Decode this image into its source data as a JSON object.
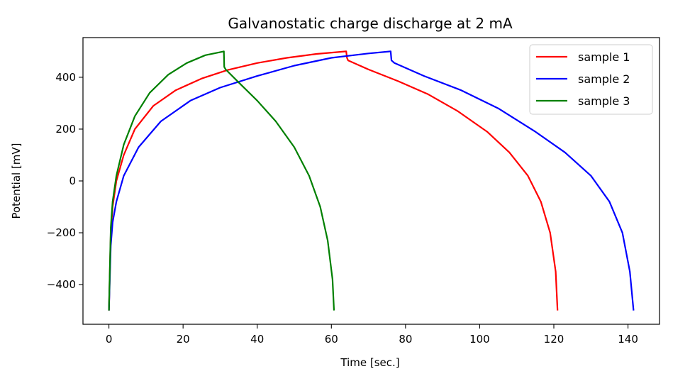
{
  "chart_data": {
    "type": "line",
    "title": "Galvanostatic charge discharge at 2 mA",
    "xlabel": "Time [sec.]",
    "ylabel": "Potential [mV]",
    "xlim": [
      -7,
      148.5
    ],
    "ylim": [
      -553,
      553
    ],
    "xticks": [
      0,
      20,
      40,
      60,
      80,
      100,
      120,
      140
    ],
    "yticks": [
      -400,
      -200,
      0,
      200,
      400
    ],
    "xtick_labels": [
      "0",
      "20",
      "40",
      "60",
      "80",
      "100",
      "120",
      "140"
    ],
    "ytick_labels": [
      "−400",
      "−200",
      "0",
      "200",
      "400"
    ],
    "grid": false,
    "legend_position": "top-right",
    "series": [
      {
        "name": "sample 1",
        "color": "#ff0000",
        "points": [
          [
            0,
            -500
          ],
          [
            0.5,
            -200
          ],
          [
            1,
            -100
          ],
          [
            2,
            0
          ],
          [
            4,
            100
          ],
          [
            7,
            200
          ],
          [
            12,
            290
          ],
          [
            18,
            350
          ],
          [
            25,
            395
          ],
          [
            32,
            428
          ],
          [
            40,
            455
          ],
          [
            48,
            475
          ],
          [
            56,
            490
          ],
          [
            64,
            500
          ],
          [
            64.2,
            475
          ],
          [
            64.5,
            465
          ],
          [
            70,
            430
          ],
          [
            78,
            385
          ],
          [
            86,
            335
          ],
          [
            94,
            270
          ],
          [
            102,
            190
          ],
          [
            108,
            110
          ],
          [
            113,
            20
          ],
          [
            116.5,
            -80
          ],
          [
            119,
            -200
          ],
          [
            120.5,
            -350
          ],
          [
            121,
            -500
          ]
        ]
      },
      {
        "name": "sample 2",
        "color": "#0000ff",
        "points": [
          [
            0,
            -500
          ],
          [
            0.5,
            -250
          ],
          [
            1,
            -160
          ],
          [
            2,
            -80
          ],
          [
            4,
            20
          ],
          [
            8,
            130
          ],
          [
            14,
            230
          ],
          [
            22,
            310
          ],
          [
            30,
            360
          ],
          [
            40,
            405
          ],
          [
            50,
            445
          ],
          [
            60,
            475
          ],
          [
            70,
            492
          ],
          [
            76,
            500
          ],
          [
            76.2,
            465
          ],
          [
            77,
            455
          ],
          [
            85,
            405
          ],
          [
            95,
            350
          ],
          [
            105,
            280
          ],
          [
            115,
            190
          ],
          [
            123,
            110
          ],
          [
            130,
            20
          ],
          [
            135,
            -80
          ],
          [
            138.5,
            -200
          ],
          [
            140.5,
            -350
          ],
          [
            141.5,
            -500
          ]
        ]
      },
      {
        "name": "sample 3",
        "color": "#008000",
        "points": [
          [
            0,
            -500
          ],
          [
            0.5,
            -180
          ],
          [
            1,
            -80
          ],
          [
            2,
            20
          ],
          [
            4,
            140
          ],
          [
            7,
            250
          ],
          [
            11,
            340
          ],
          [
            16,
            410
          ],
          [
            21,
            455
          ],
          [
            26,
            485
          ],
          [
            31,
            500
          ],
          [
            31.1,
            440
          ],
          [
            31.5,
            430
          ],
          [
            35,
            380
          ],
          [
            40,
            310
          ],
          [
            45,
            230
          ],
          [
            50,
            130
          ],
          [
            54,
            20
          ],
          [
            57,
            -100
          ],
          [
            59,
            -230
          ],
          [
            60.3,
            -380
          ],
          [
            60.7,
            -500
          ]
        ]
      }
    ]
  }
}
